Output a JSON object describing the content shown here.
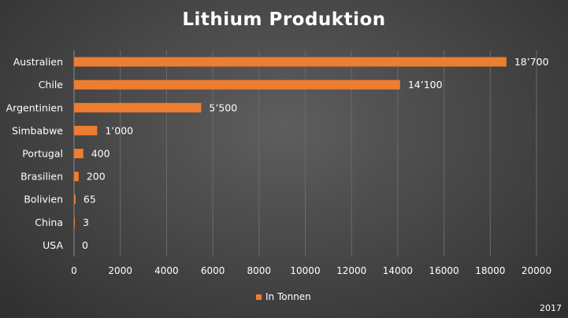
{
  "chart_data": {
    "type": "bar",
    "orientation": "horizontal",
    "title": "Lithium Produktion",
    "categories": [
      "Australien",
      "Chile",
      "Argentinien",
      "Simbabwe",
      "Portugal",
      "Brasilien",
      "Bolivien",
      "China",
      "USA"
    ],
    "series": [
      {
        "name": "In Tonnen",
        "values": [
          18700,
          14100,
          5500,
          1000,
          400,
          200,
          65,
          3,
          0
        ],
        "value_labels": [
          "18’700",
          "14’100",
          "5’500",
          "1’000",
          "400",
          "200",
          "65",
          "3",
          "0"
        ],
        "color": "#ED7D31"
      }
    ],
    "xlim": [
      0,
      20000
    ],
    "xticks": [
      0,
      2000,
      4000,
      6000,
      8000,
      10000,
      12000,
      14000,
      16000,
      18000,
      20000
    ],
    "grid": true,
    "legend": "bottom",
    "note": "2017"
  },
  "colors": {
    "bar": "#ED7D31",
    "grid": "#6a6a6a",
    "text": "#ffffff"
  }
}
